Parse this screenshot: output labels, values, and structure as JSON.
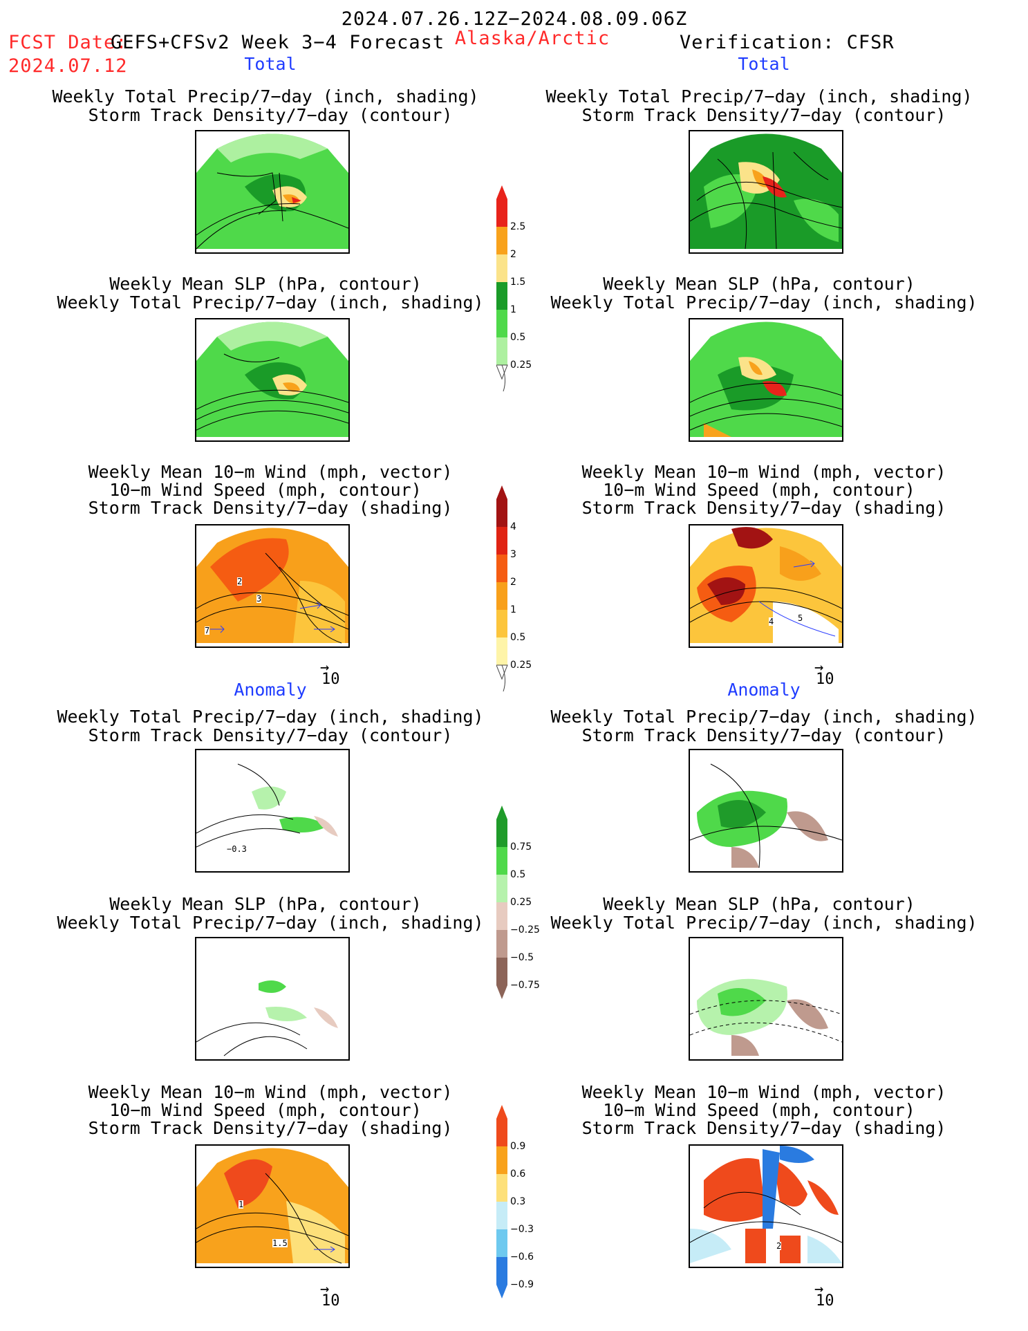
{
  "header": {
    "period": "2024.07.26.12Z−2024.08.09.06Z",
    "fcst_prefix": "FCST Date:",
    "fcst_model": "GEFS+CFSv2 Week 3−4 Forecast",
    "region": "Alaska/Arctic",
    "verification": "Verification: CFSR",
    "fcst_date": "2024.07.12"
  },
  "sections": {
    "total": "Total",
    "anomaly": "Anomaly"
  },
  "captions": {
    "precip_stdens": [
      "Weekly Total Precip/7−day (inch, shading)",
      "Storm Track Density/7−day (contour)"
    ],
    "slp_precip": [
      "Weekly Mean SLP (hPa, contour)",
      "Weekly Total Precip/7−day (inch, shading)"
    ],
    "wind": [
      "Weekly Mean 10−m Wind (mph, vector)",
      "10−m Wind Speed (mph, contour)",
      "Storm Track Density/7−day (shading)"
    ]
  },
  "reference_vector": "10",
  "contour_labels": {
    "fcst_wind_total": [
      "2",
      "3",
      "7"
    ],
    "obs_wind_total": [
      "4",
      "5"
    ],
    "fcst_precip_anom": [
      "−0.3"
    ],
    "fcst_wind_anom": [
      "1",
      "1.5"
    ],
    "obs_wind_anom": [
      "2"
    ]
  },
  "chart_data": [
    {
      "type": "heatmap",
      "name": "Total precipitation colorbar (inch)",
      "levels": [
        "2.5",
        "2",
        "1.5",
        "1",
        "0.5",
        "0.25"
      ],
      "colors": [
        "#e8231b",
        "#f8a21c",
        "#fbe38a",
        "#1a9b28",
        "#4fd94a",
        "#adf0a0"
      ]
    },
    {
      "type": "heatmap",
      "name": "Total storm track density colorbar",
      "levels": [
        "4",
        "3",
        "2",
        "1",
        "0.5",
        "0.25"
      ],
      "colors": [
        "#a21313",
        "#e02313",
        "#f55c12",
        "#f8a01b",
        "#fcc53c",
        "#fef4a8"
      ]
    },
    {
      "type": "heatmap",
      "name": "Precipitation anomaly colorbar (inch)",
      "levels": [
        "0.75",
        "0.5",
        "0.25",
        "−0.25",
        "−0.5",
        "−0.75"
      ],
      "colors": [
        "#1f9b2a",
        "#4fd94a",
        "#b6f2ac",
        "#e7cbc0",
        "#bf9a8e",
        "#8c6458"
      ]
    },
    {
      "type": "heatmap",
      "name": "Storm track density anomaly colorbar",
      "levels": [
        "0.9",
        "0.6",
        "0.3",
        "−0.3",
        "−0.6",
        "−0.9"
      ],
      "colors": [
        "#ef4a1c",
        "#f8a21c",
        "#fde07a",
        "#c6ecf7",
        "#6ec9ef",
        "#2a7be0"
      ]
    }
  ]
}
